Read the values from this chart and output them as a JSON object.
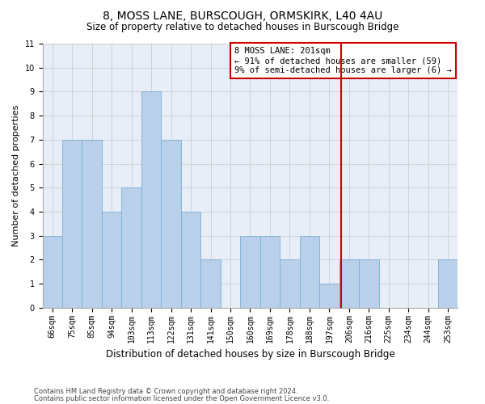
{
  "title1": "8, MOSS LANE, BURSCOUGH, ORMSKIRK, L40 4AU",
  "title2": "Size of property relative to detached houses in Burscough Bridge",
  "xlabel": "Distribution of detached houses by size in Burscough Bridge",
  "ylabel": "Number of detached properties",
  "footer1": "Contains HM Land Registry data © Crown copyright and database right 2024.",
  "footer2": "Contains public sector information licensed under the Open Government Licence v3.0.",
  "bin_labels": [
    "66sqm",
    "75sqm",
    "85sqm",
    "94sqm",
    "103sqm",
    "113sqm",
    "122sqm",
    "131sqm",
    "141sqm",
    "150sqm",
    "160sqm",
    "169sqm",
    "178sqm",
    "188sqm",
    "197sqm",
    "206sqm",
    "216sqm",
    "225sqm",
    "234sqm",
    "244sqm",
    "253sqm"
  ],
  "values": [
    3,
    7,
    7,
    4,
    5,
    9,
    7,
    4,
    2,
    0,
    3,
    3,
    2,
    3,
    1,
    2,
    2,
    0,
    0,
    0,
    2
  ],
  "bar_color": "#b8d0ea",
  "bar_edge_color": "#7aafd4",
  "grid_color": "#cccccc",
  "vline_x": 14.58,
  "vline_color": "#cc0000",
  "annotation_text": "8 MOSS LANE: 201sqm\n← 91% of detached houses are smaller (59)\n9% of semi-detached houses are larger (6) →",
  "annotation_box_color": "#cc0000",
  "ylim": [
    0,
    11
  ],
  "yticks": [
    0,
    1,
    2,
    3,
    4,
    5,
    6,
    7,
    8,
    9,
    10,
    11
  ],
  "bg_color": "#e8eef8",
  "title1_fontsize": 10,
  "title2_fontsize": 8.5,
  "xlabel_fontsize": 8.5,
  "ylabel_fontsize": 8,
  "tick_fontsize": 7,
  "annotation_fontsize": 7.5,
  "footer_fontsize": 6
}
